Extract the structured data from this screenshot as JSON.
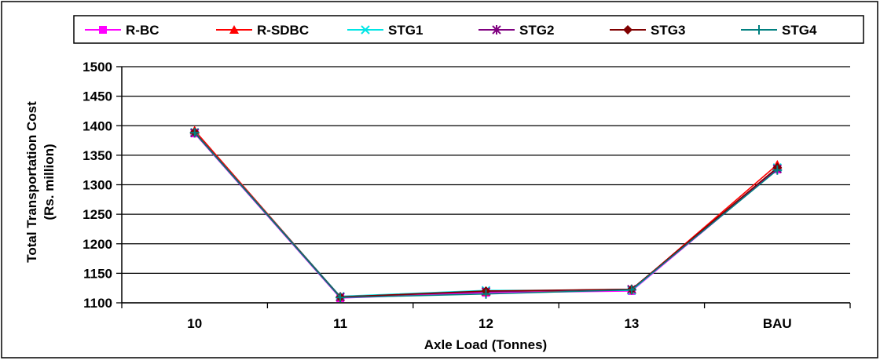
{
  "chart_data": {
    "type": "line",
    "categories": [
      "10",
      "11",
      "12",
      "13",
      "BAU"
    ],
    "ylabel_line1": "Total Transportation Cost",
    "ylabel_line2": "(Rs. million)",
    "xlabel": "Axle Load (Tonnes)",
    "ylim": [
      1100,
      1500
    ],
    "yticks": [
      1100,
      1150,
      1200,
      1250,
      1300,
      1350,
      1400,
      1450,
      1500
    ],
    "grid": true,
    "legend_position": "top",
    "series": [
      {
        "name": "R-BC",
        "color": "#ff00ff",
        "marker": "square",
        "values": [
          1387,
          1108,
          1117,
          1120,
          1326
        ]
      },
      {
        "name": "R-SDBC",
        "color": "#ff0000",
        "marker": "triangle",
        "values": [
          1392,
          1110,
          1119,
          1122,
          1334
        ]
      },
      {
        "name": "STG1",
        "color": "#00e5e5",
        "marker": "x",
        "values": [
          1389,
          1111,
          1121,
          1121,
          1329
        ]
      },
      {
        "name": "STG2",
        "color": "#800080",
        "marker": "star",
        "values": [
          1388,
          1110,
          1119,
          1123,
          1327
        ]
      },
      {
        "name": "STG3",
        "color": "#800000",
        "marker": "diamond",
        "values": [
          1389,
          1110,
          1120,
          1123,
          1329
        ]
      },
      {
        "name": "STG4",
        "color": "#008080",
        "marker": "plus",
        "values": [
          1388,
          1109,
          1115,
          1122,
          1325
        ]
      }
    ]
  }
}
